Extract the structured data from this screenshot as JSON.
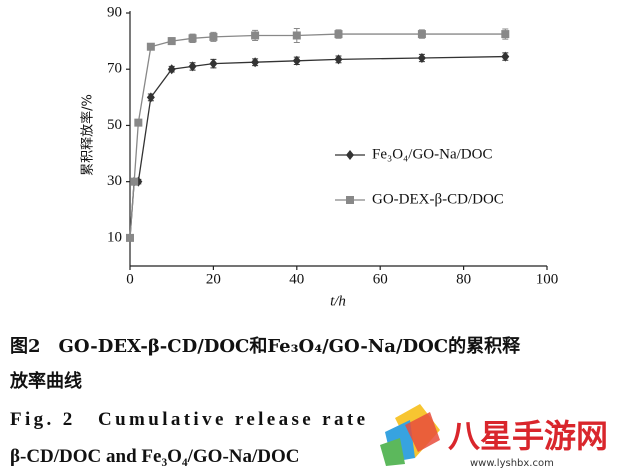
{
  "chart_data": {
    "type": "line",
    "y_label": "累积释放率/%",
    "x_label": "t/h",
    "x": [
      0,
      1,
      2,
      5,
      10,
      15,
      20,
      30,
      40,
      50,
      70,
      90
    ],
    "series": [
      {
        "name": "Fe₃O₄/GO-Na/DOC",
        "color": "#333333",
        "marker": "diamond",
        "values": [
          10,
          30,
          30,
          60,
          70,
          71,
          72,
          72.5,
          73,
          73.5,
          74,
          74.5
        ],
        "errors": [
          0.5,
          0.8,
          0.8,
          1.2,
          1,
          1.3,
          1.5,
          1.2,
          1.3,
          1.2,
          1.3,
          1.3
        ]
      },
      {
        "name": "GO-DEX-β-CD/DOC",
        "color": "#888888",
        "marker": "square",
        "values": [
          10,
          30,
          51,
          78,
          80,
          81,
          81.5,
          82,
          82,
          82.5,
          82.5,
          82.5
        ],
        "errors": [
          0.5,
          0.8,
          1,
          1,
          1.2,
          1.5,
          1.6,
          1.8,
          2.5,
          1.5,
          1.5,
          1.8
        ]
      }
    ],
    "xlim": [
      0,
      100
    ],
    "xticks": [
      0,
      20,
      40,
      60,
      80,
      100
    ],
    "ylim": [
      0,
      90
    ],
    "yticks": [
      10,
      30,
      50,
      70,
      90
    ]
  },
  "caption": {
    "cn": [
      "图2　GO-DEX-β-CD/DOC和Fe₃O₄/GO-Na/DOC的累积释",
      "放率曲线"
    ],
    "en": [
      "Fig. 2　Cumulative release rate",
      "β-CD/DOC and Fe₃O₄/GO-Na/DOC"
    ]
  },
  "watermark": {
    "name": "八星手游网",
    "url": "www.lyshbx.com"
  }
}
